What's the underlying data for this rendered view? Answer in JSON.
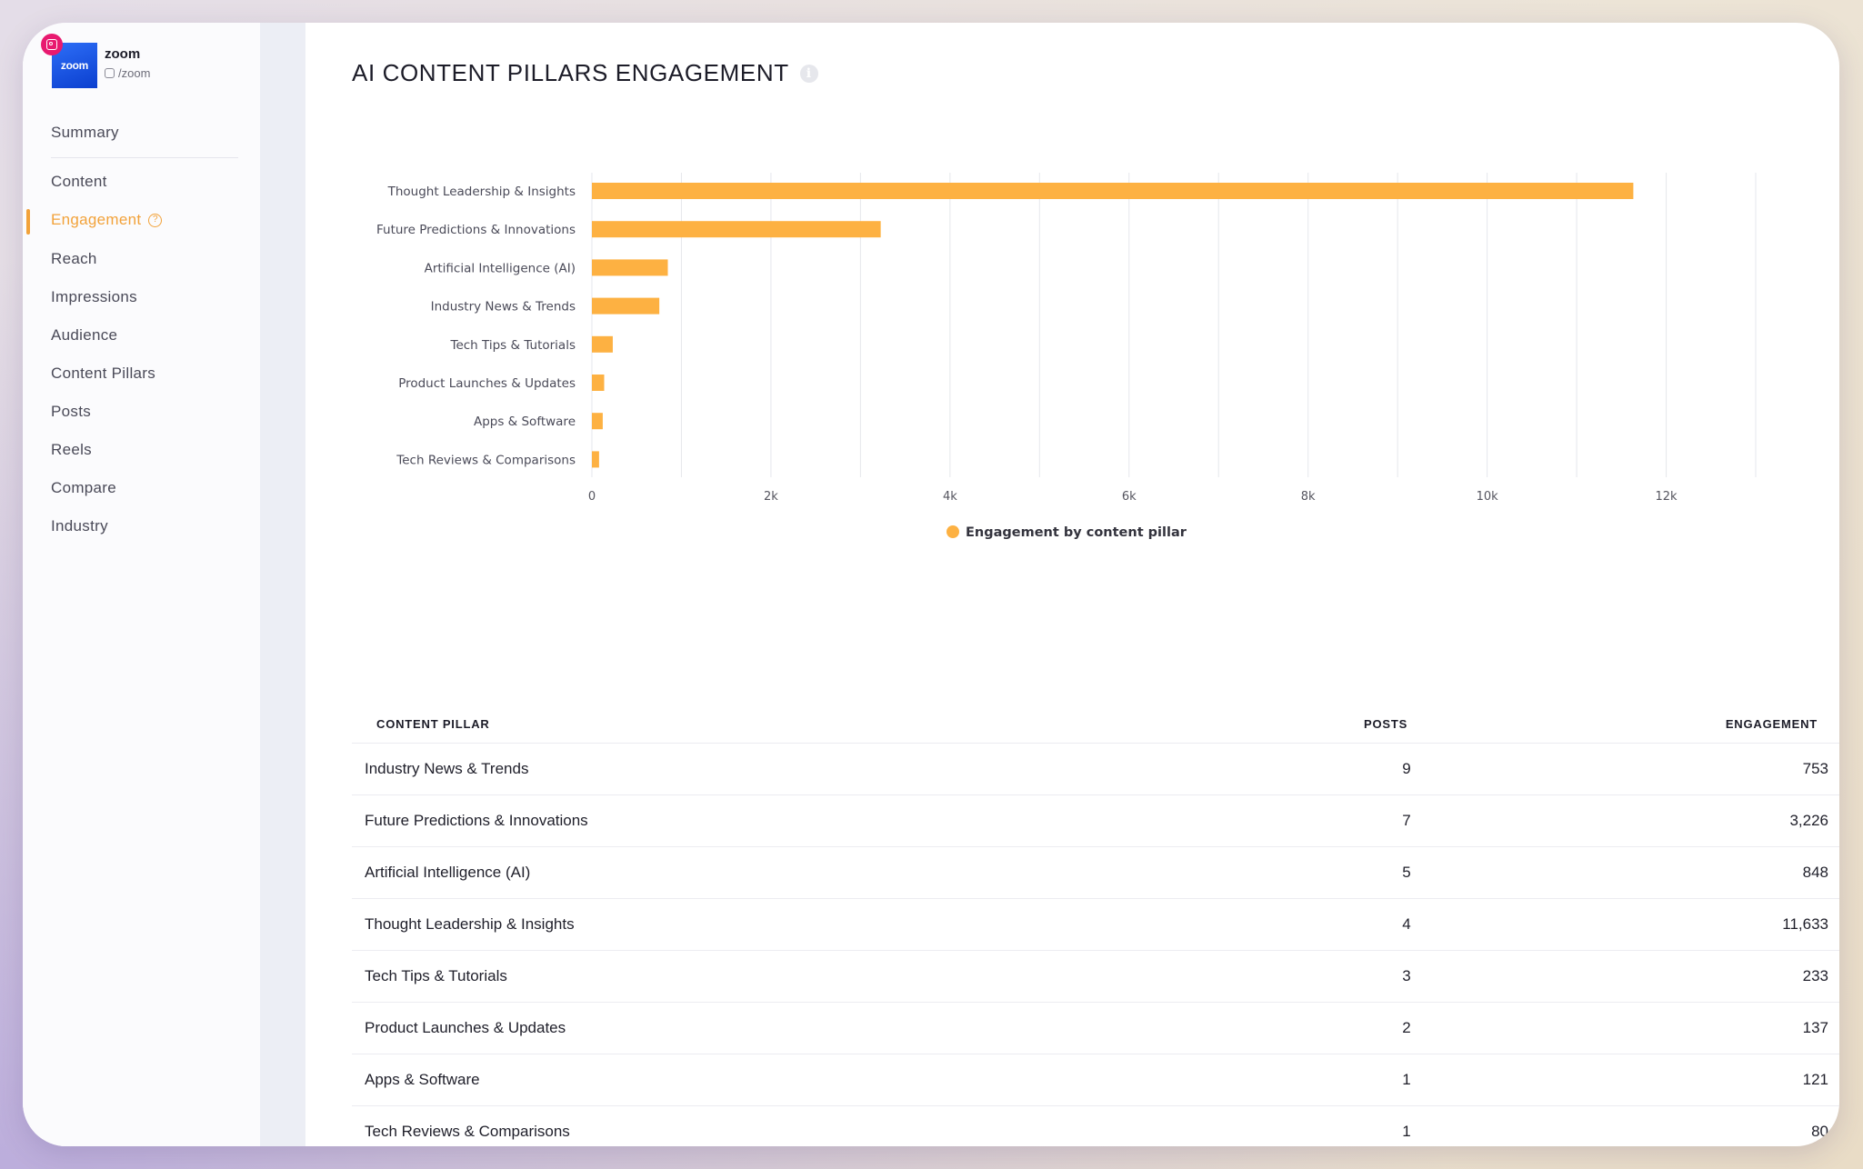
{
  "profile": {
    "logo_text": "zoom",
    "name": "zoom",
    "handle": "/zoom"
  },
  "nav": {
    "items": [
      {
        "label": "Summary"
      },
      {
        "label": "Content"
      },
      {
        "label": "Engagement",
        "active": true
      },
      {
        "label": "Reach"
      },
      {
        "label": "Impressions"
      },
      {
        "label": "Audience"
      },
      {
        "label": "Content Pillars"
      },
      {
        "label": "Posts"
      },
      {
        "label": "Reels"
      },
      {
        "label": "Compare"
      },
      {
        "label": "Industry"
      }
    ]
  },
  "page": {
    "title": "AI CONTENT PILLARS ENGAGEMENT"
  },
  "chart_data": {
    "type": "bar",
    "orientation": "horizontal",
    "categories": [
      "Thought Leadership & Insights",
      "Future Predictions & Innovations",
      "Artificial Intelligence (AI)",
      "Industry News & Trends",
      "Tech Tips & Tutorials",
      "Product Launches & Updates",
      "Apps & Software",
      "Tech Reviews & Comparisons"
    ],
    "series": [
      {
        "name": "Engagement by content pillar",
        "values": [
          11633,
          3226,
          848,
          753,
          233,
          137,
          121,
          80
        ]
      }
    ],
    "xlim": [
      0,
      13000
    ],
    "xticks": [
      0,
      2000,
      4000,
      6000,
      8000,
      10000,
      12000
    ],
    "xtick_labels": [
      "0",
      "2k",
      "4k",
      "6k",
      "8k",
      "10k",
      "12k"
    ],
    "grid": true,
    "legend": "bottom-center",
    "bar_color": "#fdb142"
  },
  "table": {
    "headers": {
      "pillar": "CONTENT PILLAR",
      "posts": "POSTS",
      "engagement": "ENGAGEMENT"
    },
    "rows": [
      {
        "pillar": "Industry News & Trends",
        "posts": "9",
        "engagement": "753"
      },
      {
        "pillar": "Future Predictions & Innovations",
        "posts": "7",
        "engagement": "3,226"
      },
      {
        "pillar": "Artificial Intelligence (AI)",
        "posts": "5",
        "engagement": "848"
      },
      {
        "pillar": "Thought Leadership & Insights",
        "posts": "4",
        "engagement": "11,633"
      },
      {
        "pillar": "Tech Tips & Tutorials",
        "posts": "3",
        "engagement": "233"
      },
      {
        "pillar": "Product Launches & Updates",
        "posts": "2",
        "engagement": "137"
      },
      {
        "pillar": "Apps & Software",
        "posts": "1",
        "engagement": "121"
      },
      {
        "pillar": "Tech Reviews & Comparisons",
        "posts": "1",
        "engagement": "80"
      }
    ]
  },
  "colors": {
    "accent": "#f2a23a",
    "bar": "#fdb142",
    "instagram": "#e8196f",
    "zoom_blue": "#0b5cff"
  },
  "icons": {
    "instagram": "instagram-icon",
    "info": "info-icon",
    "help": "help-icon"
  }
}
